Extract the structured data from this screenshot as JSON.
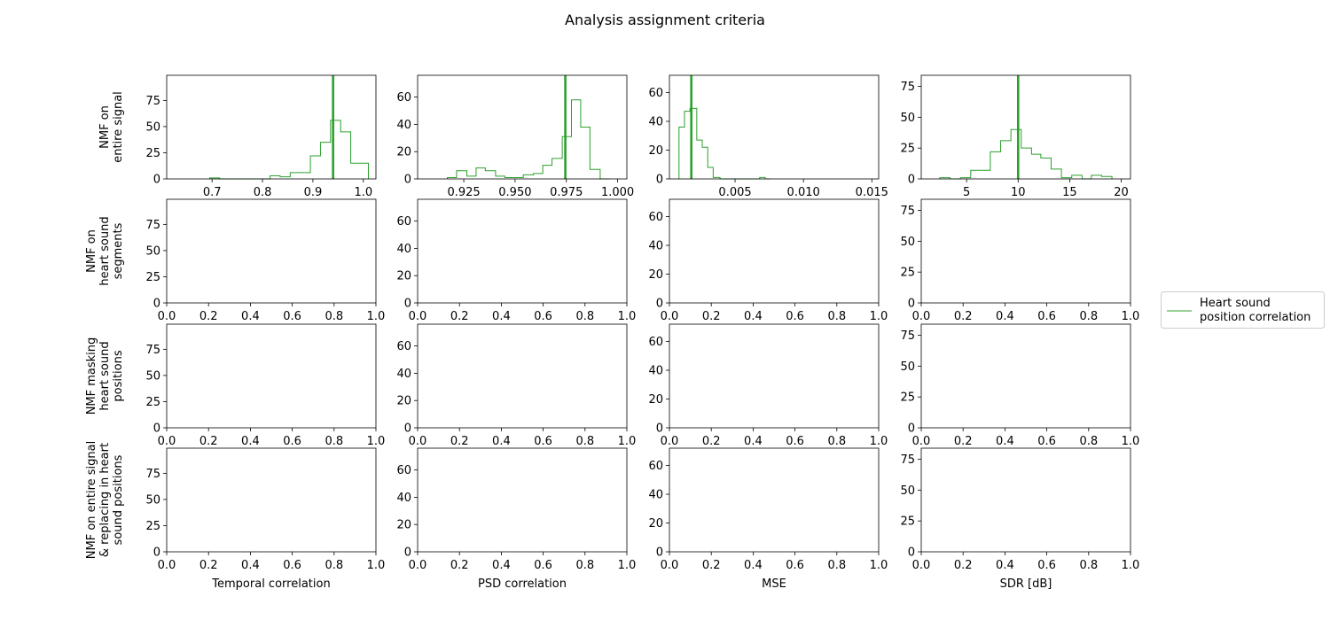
{
  "figure": {
    "title": "Analysis assignment criteria",
    "accent_color": "#2ca02c"
  },
  "chart_data": {
    "type": "histogram-grid",
    "rows": [
      "NMF on\nentire signal",
      "NMF on\nheart sound\nsegments",
      "NMF masking\nheart sound\npositions",
      "NMF on entire signal\n& replacing in heart\nsound positions"
    ],
    "columns": [
      "Temporal correlation",
      "PSD correlation",
      "MSE",
      "SDR [dB]"
    ],
    "legend": {
      "placement": "center-right",
      "entries": [
        {
          "label": "Heart sound\nposition correlation",
          "color": "#2ca02c"
        }
      ]
    },
    "panels": [
      {
        "row": 0,
        "col": 0,
        "xlim": [
          0.61,
          1.025
        ],
        "ylim": [
          0,
          99
        ],
        "xticks": [
          "0.7",
          "0.8",
          "0.9",
          "1.0"
        ],
        "xtick_values": [
          0.7,
          0.8,
          0.9,
          1.0
        ],
        "yticks": [
          "0",
          "25",
          "50",
          "75"
        ],
        "ytick_values": [
          0,
          25,
          50,
          75
        ],
        "bins": [
          0.695,
          0.715,
          0.735,
          0.755,
          0.775,
          0.795,
          0.815,
          0.835,
          0.855,
          0.875,
          0.895,
          0.915,
          0.935,
          0.955,
          0.975,
          0.995,
          1.01
        ],
        "counts": [
          1,
          0,
          0,
          0,
          0,
          0,
          3,
          2,
          6,
          6,
          22,
          35,
          56,
          45,
          15,
          15
        ],
        "vline": 0.94
      },
      {
        "row": 0,
        "col": 1,
        "xlim": [
          0.9025,
          1.0045
        ],
        "ylim": [
          0,
          76
        ],
        "xticks": [
          "0.925",
          "0.950",
          "0.975",
          "1.000"
        ],
        "xtick_values": [
          0.925,
          0.95,
          0.975,
          1.0
        ],
        "yticks": [
          "0",
          "20",
          "40",
          "60"
        ],
        "ytick_values": [
          0,
          20,
          40,
          60
        ],
        "bins": [
          0.917,
          0.9215,
          0.9265,
          0.931,
          0.9355,
          0.9405,
          0.945,
          0.9495,
          0.954,
          0.959,
          0.9635,
          0.968,
          0.973,
          0.9775,
          0.982,
          0.9865,
          0.9915,
          0.996
        ],
        "counts": [
          1,
          6,
          2,
          8,
          6,
          2,
          1,
          1,
          3,
          4,
          10,
          15,
          31,
          58,
          38,
          7,
          0
        ],
        "vline": 0.9745
      },
      {
        "row": 0,
        "col": 2,
        "xlim": [
          0.0002,
          0.0155
        ],
        "ylim": [
          0,
          72
        ],
        "xticks": [
          "0.005",
          "0.010",
          "0.015"
        ],
        "xtick_values": [
          0.005,
          0.01,
          0.015
        ],
        "yticks": [
          "0",
          "20",
          "40",
          "60"
        ],
        "ytick_values": [
          0,
          20,
          40,
          60
        ],
        "bins": [
          0.0009,
          0.0013,
          0.0017,
          0.0022,
          0.0026,
          0.003,
          0.0034,
          0.0039,
          0.0043,
          0.0047,
          0.0051,
          0.0055,
          0.0059,
          0.0064,
          0.0068,
          0.0072,
          0.0076
        ],
        "counts": [
          36,
          47,
          49,
          27,
          22,
          8,
          1,
          0,
          0,
          0,
          0,
          0,
          0,
          0,
          1,
          0
        ],
        "vline": 0.0018
      },
      {
        "row": 0,
        "col": 3,
        "xlim": [
          0.6,
          20.9
        ],
        "ylim": [
          0,
          84
        ],
        "xticks": [
          "5",
          "10",
          "15",
          "20"
        ],
        "xtick_values": [
          5,
          10,
          15,
          20
        ],
        "yticks": [
          "0",
          "25",
          "50",
          "75"
        ],
        "ytick_values": [
          0,
          25,
          50,
          75
        ],
        "bins": [
          2.4,
          3.4,
          4.4,
          5.4,
          6.3,
          7.3,
          8.3,
          9.3,
          10.3,
          11.3,
          12.2,
          13.2,
          14.2,
          15.2,
          16.2,
          17.1,
          18.1,
          19.1
        ],
        "counts": [
          1,
          0,
          1,
          7,
          7,
          22,
          31,
          40,
          25,
          20,
          17,
          8,
          1,
          3,
          0,
          3,
          2
        ],
        "vline": 10.0
      },
      {
        "row": 1,
        "col": 0,
        "xlim": [
          0,
          1
        ],
        "ylim": [
          0,
          99
        ],
        "xticks": [
          "0.0",
          "0.2",
          "0.4",
          "0.6",
          "0.8",
          "1.0"
        ],
        "xtick_values": [
          0,
          0.2,
          0.4,
          0.6,
          0.8,
          1.0
        ],
        "yticks": [
          "0",
          "25",
          "50",
          "75"
        ],
        "ytick_values": [
          0,
          25,
          50,
          75
        ]
      },
      {
        "row": 1,
        "col": 1,
        "xlim": [
          0,
          1
        ],
        "ylim": [
          0,
          76
        ],
        "xticks": [
          "0.0",
          "0.2",
          "0.4",
          "0.6",
          "0.8",
          "1.0"
        ],
        "xtick_values": [
          0,
          0.2,
          0.4,
          0.6,
          0.8,
          1.0
        ],
        "yticks": [
          "0",
          "20",
          "40",
          "60"
        ],
        "ytick_values": [
          0,
          20,
          40,
          60
        ]
      },
      {
        "row": 1,
        "col": 2,
        "xlim": [
          0,
          1
        ],
        "ylim": [
          0,
          72
        ],
        "xticks": [
          "0.0",
          "0.2",
          "0.4",
          "0.6",
          "0.8",
          "1.0"
        ],
        "xtick_values": [
          0,
          0.2,
          0.4,
          0.6,
          0.8,
          1.0
        ],
        "yticks": [
          "0",
          "20",
          "40",
          "60"
        ],
        "ytick_values": [
          0,
          20,
          40,
          60
        ]
      },
      {
        "row": 1,
        "col": 3,
        "xlim": [
          0,
          1
        ],
        "ylim": [
          0,
          84
        ],
        "xticks": [
          "0.0",
          "0.2",
          "0.4",
          "0.6",
          "0.8",
          "1.0"
        ],
        "xtick_values": [
          0,
          0.2,
          0.4,
          0.6,
          0.8,
          1.0
        ],
        "yticks": [
          "0",
          "25",
          "50",
          "75"
        ],
        "ytick_values": [
          0,
          25,
          50,
          75
        ]
      },
      {
        "row": 2,
        "col": 0,
        "xlim": [
          0,
          1
        ],
        "ylim": [
          0,
          99
        ],
        "xticks": [
          "0.0",
          "0.2",
          "0.4",
          "0.6",
          "0.8",
          "1.0"
        ],
        "xtick_values": [
          0,
          0.2,
          0.4,
          0.6,
          0.8,
          1.0
        ],
        "yticks": [
          "0",
          "25",
          "50",
          "75"
        ],
        "ytick_values": [
          0,
          25,
          50,
          75
        ]
      },
      {
        "row": 2,
        "col": 1,
        "xlim": [
          0,
          1
        ],
        "ylim": [
          0,
          76
        ],
        "xticks": [
          "0.0",
          "0.2",
          "0.4",
          "0.6",
          "0.8",
          "1.0"
        ],
        "xtick_values": [
          0,
          0.2,
          0.4,
          0.6,
          0.8,
          1.0
        ],
        "yticks": [
          "0",
          "20",
          "40",
          "60"
        ],
        "ytick_values": [
          0,
          20,
          40,
          60
        ]
      },
      {
        "row": 2,
        "col": 2,
        "xlim": [
          0,
          1
        ],
        "ylim": [
          0,
          72
        ],
        "xticks": [
          "0.0",
          "0.2",
          "0.4",
          "0.6",
          "0.8",
          "1.0"
        ],
        "xtick_values": [
          0,
          0.2,
          0.4,
          0.6,
          0.8,
          1.0
        ],
        "yticks": [
          "0",
          "20",
          "40",
          "60"
        ],
        "ytick_values": [
          0,
          20,
          40,
          60
        ]
      },
      {
        "row": 2,
        "col": 3,
        "xlim": [
          0,
          1
        ],
        "ylim": [
          0,
          84
        ],
        "xticks": [
          "0.0",
          "0.2",
          "0.4",
          "0.6",
          "0.8",
          "1.0"
        ],
        "xtick_values": [
          0,
          0.2,
          0.4,
          0.6,
          0.8,
          1.0
        ],
        "yticks": [
          "0",
          "25",
          "50",
          "75"
        ],
        "ytick_values": [
          0,
          25,
          50,
          75
        ]
      },
      {
        "row": 3,
        "col": 0,
        "xlim": [
          0,
          1
        ],
        "ylim": [
          0,
          99
        ],
        "xticks": [
          "0.0",
          "0.2",
          "0.4",
          "0.6",
          "0.8",
          "1.0"
        ],
        "xtick_values": [
          0,
          0.2,
          0.4,
          0.6,
          0.8,
          1.0
        ],
        "yticks": [
          "0",
          "25",
          "50",
          "75"
        ],
        "ytick_values": [
          0,
          25,
          50,
          75
        ]
      },
      {
        "row": 3,
        "col": 1,
        "xlim": [
          0,
          1
        ],
        "ylim": [
          0,
          76
        ],
        "xticks": [
          "0.0",
          "0.2",
          "0.4",
          "0.6",
          "0.8",
          "1.0"
        ],
        "xtick_values": [
          0,
          0.2,
          0.4,
          0.6,
          0.8,
          1.0
        ],
        "yticks": [
          "0",
          "20",
          "40",
          "60"
        ],
        "ytick_values": [
          0,
          20,
          40,
          60
        ]
      },
      {
        "row": 3,
        "col": 2,
        "xlim": [
          0,
          1
        ],
        "ylim": [
          0,
          72
        ],
        "xticks": [
          "0.0",
          "0.2",
          "0.4",
          "0.6",
          "0.8",
          "1.0"
        ],
        "xtick_values": [
          0,
          0.2,
          0.4,
          0.6,
          0.8,
          1.0
        ],
        "yticks": [
          "0",
          "20",
          "40",
          "60"
        ],
        "ytick_values": [
          0,
          20,
          40,
          60
        ]
      },
      {
        "row": 3,
        "col": 3,
        "xlim": [
          0,
          1
        ],
        "ylim": [
          0,
          84
        ],
        "xticks": [
          "0.0",
          "0.2",
          "0.4",
          "0.6",
          "0.8",
          "1.0"
        ],
        "xtick_values": [
          0,
          0.2,
          0.4,
          0.6,
          0.8,
          1.0
        ],
        "yticks": [
          "0",
          "25",
          "50",
          "75"
        ],
        "ytick_values": [
          0,
          25,
          50,
          75
        ]
      }
    ]
  }
}
